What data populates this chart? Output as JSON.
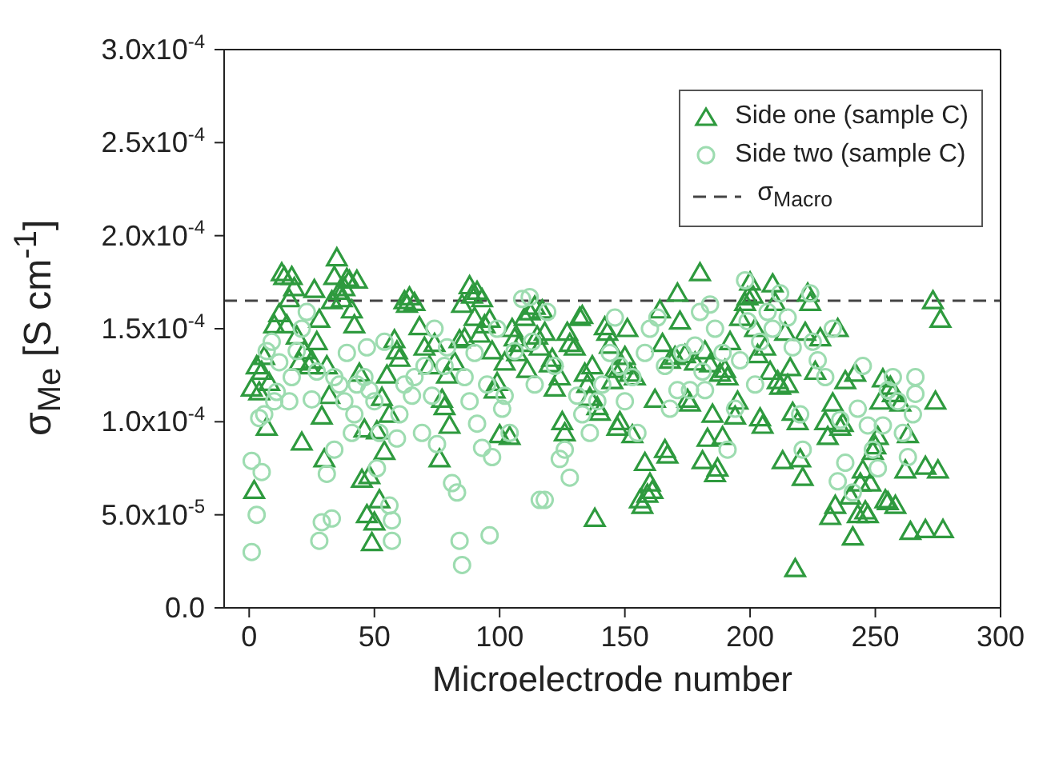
{
  "chart_data": {
    "type": "scatter",
    "xlabel": "Microelectrode number",
    "ylabel": "σ$_{Me}$ [S cm$^{-1}$]",
    "xlim": [
      -10,
      300
    ],
    "xticks": [
      0,
      50,
      100,
      150,
      200,
      250,
      300
    ],
    "ylim": [
      0,
      0.0003
    ],
    "yticks": [
      {
        "value": 0,
        "label": "0.0"
      },
      {
        "value": 5e-05,
        "label": "5.0x10$^{-5}$"
      },
      {
        "value": 0.0001,
        "label": "1.0x10$^{-4}$"
      },
      {
        "value": 0.00015,
        "label": "1.5x10$^{-4}$"
      },
      {
        "value": 0.0002,
        "label": "2.0x10$^{-4}$"
      },
      {
        "value": 0.00025,
        "label": "2.5x10$^{-4}$"
      },
      {
        "value": 0.0003,
        "label": "3.0x10$^{-4}$"
      }
    ],
    "legend": "top right",
    "ref_lines": [
      {
        "axis": "y",
        "value": 0.000165,
        "label": "σ$_{Macro}$",
        "color": "#444444",
        "line_style": "dashed"
      }
    ],
    "series": [
      {
        "name": "Side one (sample C)",
        "color": "#2e9a3e",
        "marker": "triangle",
        "x": [
          1,
          2,
          3,
          4,
          5,
          6,
          7,
          8,
          10,
          12,
          13,
          14,
          15,
          16,
          17,
          18,
          19,
          20,
          21,
          22,
          24,
          25,
          26,
          27,
          28,
          29,
          30,
          31,
          32,
          33,
          34,
          35,
          36,
          37,
          38,
          39,
          40,
          41,
          42,
          43,
          44,
          45,
          46,
          47,
          48,
          49,
          50,
          51,
          52,
          53,
          54,
          55,
          56,
          58,
          59,
          60,
          62,
          63,
          64,
          66,
          68,
          70,
          72,
          74,
          76,
          77,
          78,
          79,
          80,
          82,
          84,
          85,
          86,
          88,
          89,
          90,
          91,
          92,
          93,
          94,
          96,
          97,
          98,
          99,
          100,
          102,
          104,
          105,
          106,
          107,
          108,
          110,
          111,
          112,
          114,
          115,
          116,
          117,
          118,
          120,
          121,
          122,
          124,
          125,
          126,
          127,
          128,
          130,
          132,
          133,
          134,
          135,
          136,
          137,
          138,
          139,
          140,
          142,
          143,
          144,
          145,
          146,
          147,
          148,
          149,
          150,
          151,
          152,
          153,
          154,
          156,
          157,
          158,
          159,
          160,
          161,
          162,
          164,
          165,
          166,
          167,
          168,
          170,
          171,
          172,
          174,
          175,
          176,
          178,
          180,
          181,
          182,
          183,
          184,
          185,
          186,
          187,
          188,
          189,
          190,
          191,
          192,
          194,
          195,
          196,
          198,
          199,
          200,
          201,
          202,
          203,
          204,
          205,
          206,
          208,
          209,
          210,
          211,
          212,
          213,
          214,
          215,
          216,
          217,
          218,
          219,
          220,
          221,
          222,
          223,
          224,
          226,
          228,
          230,
          231,
          232,
          233,
          234,
          235,
          236,
          237,
          238,
          240,
          241,
          242,
          243,
          244,
          245,
          246,
          247,
          248,
          249,
          250,
          251,
          252,
          253,
          254,
          255,
          256,
          257,
          258,
          260,
          262,
          263,
          264,
          270,
          273,
          274,
          275,
          276,
          270,
          277
        ],
        "values": [
          0.000118,
          6.3e-05,
          0.00013,
          0.000116,
          0.000127,
          0.000135,
          9.7e-05,
          0.000121,
          0.000152,
          0.000158,
          0.00018,
          0.000178,
          0.000152,
          0.000166,
          0.000178,
          0.000172,
          0.000146,
          0.000132,
          8.9e-05,
          0.000138,
          0.00013,
          0.000133,
          0.000171,
          0.000143,
          0.000155,
          0.000103,
          8e-05,
          0.00013,
          0.000114,
          0.000165,
          0.000178,
          0.000188,
          0.00017,
          0.000166,
          0.000172,
          0.000177,
          0.000176,
          0.00016,
          0.000152,
          0.000176,
          0.000126,
          6.9e-05,
          9.6e-05,
          5e-05,
          7.1e-05,
          3.5e-05,
          4.6e-05,
          9.5e-05,
          5.8e-05,
          0.000113,
          8.4e-05,
          0.000125,
          0.000104,
          0.000144,
          0.000138,
          0.000134,
          0.000165,
          0.000163,
          0.000167,
          0.000164,
          0.000151,
          0.00014,
          0.00013,
          0.000142,
          8e-05,
          0.000112,
          0.000108,
          0.000125,
          9.8e-05,
          0.000132,
          0.000144,
          0.000163,
          0.000145,
          0.000173,
          0.000168,
          0.000156,
          0.00017,
          0.000147,
          0.000166,
          0.000152,
          0.000155,
          0.000138,
          0.000117,
          0.000121,
          9.3e-05,
          0.000132,
          9.2e-05,
          0.00015,
          0.000145,
          0.000137,
          0.000142,
          0.000156,
          0.000128,
          0.000159,
          0.000162,
          0.000146,
          0.00014,
          0.00016,
          0.000148,
          0.000131,
          0.000134,
          0.000118,
          0.000124,
          0.0001,
          9.4e-05,
          0.000148,
          0.000142,
          0.00014,
          0.000156,
          0.000157,
          0.000126,
          0.00012,
          0.000113,
          0.00013,
          4.8e-05,
          0.000108,
          0.000105,
          0.000151,
          0.000148,
          0.000141,
          0.000122,
          0.000128,
          9.7e-05,
          0.0001,
          0.00013,
          0.000135,
          0.00015,
          0.000126,
          9.3e-05,
          0.000124,
          5.8e-05,
          5.5e-05,
          7.8e-05,
          6.1e-05,
          6.7e-05,
          6.3e-05,
          0.000112,
          0.00016,
          0.000142,
          8.5e-05,
          8.2e-05,
          0.000133,
          0.000135,
          0.000169,
          0.000154,
          0.000136,
          0.000112,
          0.00011,
          0.000132,
          0.00018,
          7.9e-05,
          0.000138,
          9.1e-05,
          0.000131,
          0.000104,
          7.2e-05,
          7.5e-05,
          0.000126,
          9.2e-05,
          0.000128,
          0.000124,
          0.000143,
          0.000103,
          0.000111,
          0.000156,
          0.000164,
          0.000167,
          0.000175,
          0.000168,
          0.00015,
          0.000136,
          0.000102,
          9.8e-05,
          0.00014,
          0.000127,
          0.000174,
          0.000164,
          0.000122,
          0.000119,
          7.9e-05,
          0.000148,
          0.00012,
          0.000129,
          0.000105,
          2.1e-05,
          0.0001,
          8e-05,
          7e-05,
          0.000148,
          0.000169,
          0.000164,
          0.000127,
          0.000145,
          0.0001,
          9.2e-05,
          4.9e-05,
          0.00011,
          5.5e-05,
          0.00015,
          9.7e-05,
          9.9e-05,
          0.000122,
          6e-05,
          3.8e-05,
          0.000126,
          5e-05,
          6.7e-05,
          7.4e-05,
          5.2e-05,
          5e-05,
          6.7e-05,
          8.4e-05,
          8.7e-05,
          9.2e-05,
          0.000111,
          0.000123,
          5.8e-05,
          5.7e-05,
          0.000119,
          0.000115,
          5.5e-05,
          0.00011,
          7.4e-05,
          9.3e-05,
          4.1e-05,
          7.6e-05,
          0.000165,
          0.000111,
          7.4e-05,
          0.000155,
          4.2e-05,
          4.2e-05
        ]
      },
      {
        "name": "Side two (sample C)",
        "color": "#9ddcb0",
        "marker": "circle",
        "x": [
          1,
          1,
          3,
          5,
          4,
          6,
          7,
          9,
          10,
          11,
          12,
          16,
          17,
          19,
          21,
          23,
          25,
          27,
          28,
          29,
          31,
          33,
          34,
          34,
          36,
          38,
          39,
          41,
          42,
          43,
          46,
          47,
          48,
          50,
          51,
          52,
          54,
          56,
          57,
          57,
          59,
          60,
          62,
          65,
          66,
          69,
          70,
          73,
          74,
          75,
          78,
          79,
          81,
          83,
          84,
          85,
          86,
          88,
          90,
          91,
          93,
          95,
          96,
          97,
          99,
          101,
          102,
          104,
          106,
          109,
          112,
          113,
          114,
          116,
          118,
          119,
          122,
          124,
          126,
          128,
          131,
          133,
          136,
          139,
          141,
          144,
          146,
          148,
          150,
          153,
          155,
          158,
          160,
          163,
          166,
          168,
          171,
          173,
          176,
          178,
          180,
          181,
          182,
          184,
          186,
          189,
          191,
          194,
          196,
          198,
          199,
          202,
          204,
          207,
          209,
          212,
          215,
          217,
          220,
          221,
          224,
          225,
          227,
          230,
          233,
          235,
          236,
          238,
          241,
          243,
          245,
          247,
          249,
          251,
          253,
          255,
          257,
          259,
          261,
          263,
          265,
          266,
          266
        ],
        "values": [
          3e-05,
          7.9e-05,
          5e-05,
          7.3e-05,
          0.000102,
          0.000104,
          0.000138,
          0.000143,
          0.000111,
          0.000116,
          0.000132,
          0.000111,
          0.000124,
          0.000138,
          0.00015,
          0.000159,
          0.000112,
          0.000127,
          3.6e-05,
          4.6e-05,
          7.2e-05,
          4.8e-05,
          8.5e-05,
          0.000124,
          0.00012,
          0.000111,
          0.000137,
          9.4e-05,
          0.000104,
          0.00012,
          0.000124,
          0.00014,
          0.000117,
          0.000111,
          7.5e-05,
          9.4e-05,
          0.000143,
          5.5e-05,
          3.6e-05,
          4.7e-05,
          9.1e-05,
          0.000104,
          0.00012,
          0.000114,
          0.000124,
          9.4e-05,
          0.00013,
          0.000114,
          0.00015,
          8.8e-05,
          0.00013,
          0.00014,
          6.7e-05,
          6.2e-05,
          3.6e-05,
          2.3e-05,
          0.000124,
          0.000111,
          0.000137,
          9.9e-05,
          8.6e-05,
          0.00012,
          3.9e-05,
          8.1e-05,
          0.00015,
          0.000107,
          0.000114,
          9.4e-05,
          0.000138,
          0.000166,
          0.000167,
          0.000143,
          0.00012,
          5.8e-05,
          5.8e-05,
          0.000159,
          0.00013,
          8e-05,
          8.5e-05,
          7e-05,
          0.000114,
          0.000104,
          9.4e-05,
          0.000111,
          0.00012,
          0.000137,
          0.000156,
          0.00013,
          0.000111,
          0.000124,
          9.4e-05,
          0.000137,
          0.00015,
          0.000156,
          0.00013,
          0.000107,
          0.000117,
          0.000137,
          0.000117,
          0.000141,
          0.000159,
          0.000127,
          0.000117,
          0.000163,
          0.00015,
          0.000137,
          8.5e-05,
          0.000107,
          0.000133,
          0.000176,
          0.000154,
          0.00012,
          0.000143,
          0.000159,
          0.00015,
          0.000169,
          0.000156,
          0.00014,
          0.000104,
          8.5e-05,
          0.000169,
          0.000143,
          0.000133,
          0.000124,
          0.00015,
          6.8e-05,
          0.000101,
          7.8e-05,
          6.2e-05,
          0.000107,
          0.00013,
          9.8e-05,
          8.5e-05,
          7.5e-05,
          9.8e-05,
          0.000117,
          0.000124,
          0.000111,
          9.4e-05,
          8.1e-05,
          0.000104,
          0.000115,
          0.000124
        ]
      }
    ]
  }
}
